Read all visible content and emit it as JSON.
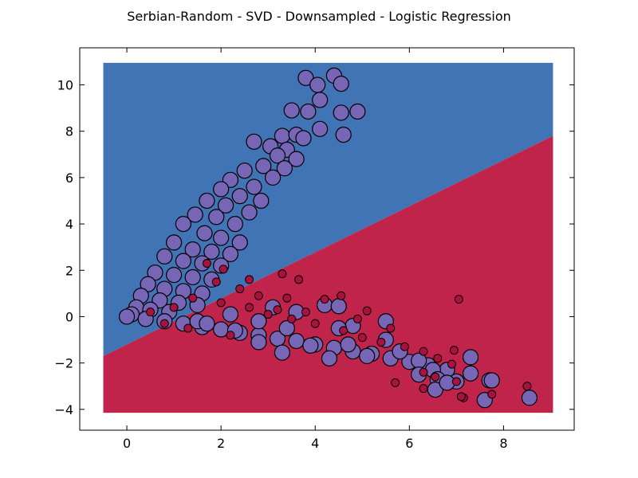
{
  "chart_data": {
    "type": "scatter",
    "title": "Serbian-Random - SVD - Downsampled - Logistic Regression",
    "xlabel": "",
    "ylabel": "",
    "xlim": [
      -1,
      9.5
    ],
    "ylim": [
      -4.9,
      11.6
    ],
    "x_ticks": [
      0,
      2,
      4,
      6,
      8
    ],
    "y_ticks": [
      -4,
      -2,
      0,
      2,
      4,
      6,
      8,
      10
    ],
    "grid": false,
    "legend": "none",
    "decision_regions": {
      "extent_x": [
        -0.5,
        9.05
      ],
      "extent_y": [
        -4.15,
        10.95
      ],
      "boundary_line": [
        [
          -0.5,
          -1.7
        ],
        [
          9.05,
          7.8
        ]
      ],
      "upper_color": "#4174b4",
      "lower_color": "#c0244a"
    },
    "series": [
      {
        "class": 1,
        "color": "#7766b6",
        "points": [
          [
            4.4,
            10.4
          ],
          [
            3.8,
            10.3
          ],
          [
            4.05,
            10.0
          ],
          [
            4.55,
            10.05
          ],
          [
            4.1,
            9.35
          ],
          [
            4.9,
            8.85
          ],
          [
            3.5,
            8.9
          ],
          [
            3.85,
            8.85
          ],
          [
            4.55,
            8.8
          ],
          [
            4.1,
            8.1
          ],
          [
            4.6,
            7.85
          ],
          [
            3.3,
            7.8
          ],
          [
            3.6,
            7.85
          ],
          [
            3.75,
            7.7
          ],
          [
            2.7,
            7.55
          ],
          [
            3.05,
            7.35
          ],
          [
            3.4,
            7.2
          ],
          [
            3.2,
            6.95
          ],
          [
            3.6,
            6.8
          ],
          [
            2.9,
            6.5
          ],
          [
            3.35,
            6.4
          ],
          [
            2.5,
            6.3
          ],
          [
            3.1,
            6.0
          ],
          [
            2.2,
            5.9
          ],
          [
            2.7,
            5.6
          ],
          [
            2.0,
            5.5
          ],
          [
            2.4,
            5.2
          ],
          [
            2.85,
            5.0
          ],
          [
            1.7,
            5.0
          ],
          [
            2.1,
            4.8
          ],
          [
            2.6,
            4.5
          ],
          [
            1.45,
            4.4
          ],
          [
            1.9,
            4.3
          ],
          [
            2.3,
            4.0
          ],
          [
            1.2,
            4.0
          ],
          [
            1.65,
            3.6
          ],
          [
            2.0,
            3.4
          ],
          [
            2.4,
            3.2
          ],
          [
            1.0,
            3.2
          ],
          [
            1.4,
            2.9
          ],
          [
            1.8,
            2.8
          ],
          [
            2.2,
            2.7
          ],
          [
            0.8,
            2.6
          ],
          [
            1.2,
            2.4
          ],
          [
            1.6,
            2.3
          ],
          [
            2.0,
            2.2
          ],
          [
            0.6,
            1.9
          ],
          [
            1.0,
            1.8
          ],
          [
            1.4,
            1.7
          ],
          [
            1.8,
            1.6
          ],
          [
            0.45,
            1.4
          ],
          [
            0.8,
            1.2
          ],
          [
            1.2,
            1.1
          ],
          [
            1.6,
            1.0
          ],
          [
            0.3,
            0.9
          ],
          [
            0.7,
            0.7
          ],
          [
            1.1,
            0.6
          ],
          [
            1.5,
            0.5
          ],
          [
            0.2,
            0.4
          ],
          [
            0.5,
            0.3
          ],
          [
            0.9,
            0.2
          ],
          [
            0.1,
            0.1
          ],
          [
            0.0,
            0.0
          ],
          [
            0.4,
            -0.1
          ],
          [
            0.8,
            -0.2
          ],
          [
            1.2,
            -0.3
          ],
          [
            1.6,
            -0.45
          ],
          [
            2.0,
            -0.55
          ],
          [
            2.4,
            -0.7
          ],
          [
            2.8,
            -0.8
          ],
          [
            3.2,
            -0.95
          ],
          [
            3.6,
            -1.05
          ],
          [
            4.0,
            -1.2
          ],
          [
            4.4,
            -1.35
          ],
          [
            4.8,
            -1.5
          ],
          [
            5.2,
            -1.6
          ],
          [
            5.6,
            -1.8
          ],
          [
            6.0,
            -1.95
          ],
          [
            6.4,
            -2.1
          ],
          [
            6.8,
            -2.3
          ],
          [
            3.1,
            0.4
          ],
          [
            3.6,
            0.2
          ],
          [
            4.2,
            0.5
          ],
          [
            4.5,
            0.45
          ],
          [
            4.8,
            -0.4
          ],
          [
            5.5,
            -0.2
          ],
          [
            3.4,
            -0.5
          ],
          [
            2.8,
            -0.2
          ],
          [
            2.2,
            0.1
          ],
          [
            1.5,
            -0.2
          ],
          [
            4.5,
            -0.5
          ],
          [
            5.1,
            -1.7
          ],
          [
            5.5,
            -1.0
          ],
          [
            5.8,
            -1.5
          ],
          [
            6.2,
            -1.9
          ],
          [
            6.5,
            -2.3
          ],
          [
            6.6,
            -2.7
          ],
          [
            6.55,
            -3.15
          ],
          [
            6.2,
            -2.5
          ],
          [
            7.0,
            -2.8
          ],
          [
            6.8,
            -2.85
          ],
          [
            7.3,
            -2.45
          ],
          [
            7.7,
            -2.75
          ],
          [
            7.75,
            -2.75
          ],
          [
            7.3,
            -1.75
          ],
          [
            7.6,
            -3.6
          ],
          [
            8.55,
            -3.5
          ],
          [
            3.3,
            -1.55
          ],
          [
            3.9,
            -1.25
          ],
          [
            4.3,
            -1.8
          ],
          [
            4.7,
            -1.2
          ],
          [
            2.8,
            -1.1
          ],
          [
            2.3,
            -0.6
          ],
          [
            1.7,
            -0.3
          ]
        ]
      },
      {
        "class": 0,
        "color": "#a8123e",
        "points": [
          [
            3.3,
            1.85
          ],
          [
            3.65,
            1.6
          ],
          [
            2.05,
            2.05
          ],
          [
            1.7,
            2.3
          ],
          [
            4.55,
            0.9
          ],
          [
            4.2,
            0.75
          ],
          [
            7.05,
            0.75
          ],
          [
            5.1,
            0.25
          ],
          [
            3.8,
            0.2
          ],
          [
            3.2,
            0.3
          ],
          [
            2.6,
            0.4
          ],
          [
            2.0,
            0.6
          ],
          [
            1.4,
            0.8
          ],
          [
            1.0,
            0.4
          ],
          [
            2.4,
            1.2
          ],
          [
            2.8,
            0.9
          ],
          [
            3.0,
            0.1
          ],
          [
            3.5,
            -0.1
          ],
          [
            4.0,
            -0.3
          ],
          [
            4.6,
            -0.6
          ],
          [
            5.0,
            -0.9
          ],
          [
            5.4,
            -1.1
          ],
          [
            5.9,
            -1.3
          ],
          [
            6.3,
            -1.5
          ],
          [
            6.6,
            -1.8
          ],
          [
            6.3,
            -2.4
          ],
          [
            6.55,
            -2.6
          ],
          [
            6.95,
            -1.45
          ],
          [
            6.9,
            -2.05
          ],
          [
            7.0,
            -2.8
          ],
          [
            6.3,
            -3.1
          ],
          [
            5.7,
            -2.85
          ],
          [
            7.15,
            -3.5
          ],
          [
            7.1,
            -3.45
          ],
          [
            7.75,
            -3.35
          ],
          [
            8.5,
            -3.0
          ],
          [
            2.2,
            -0.8
          ],
          [
            1.3,
            -0.5
          ],
          [
            0.8,
            -0.3
          ],
          [
            0.5,
            0.2
          ],
          [
            1.9,
            1.5
          ],
          [
            2.6,
            1.6
          ],
          [
            3.4,
            0.8
          ],
          [
            4.9,
            -0.1
          ],
          [
            5.6,
            -0.5
          ]
        ]
      }
    ]
  }
}
